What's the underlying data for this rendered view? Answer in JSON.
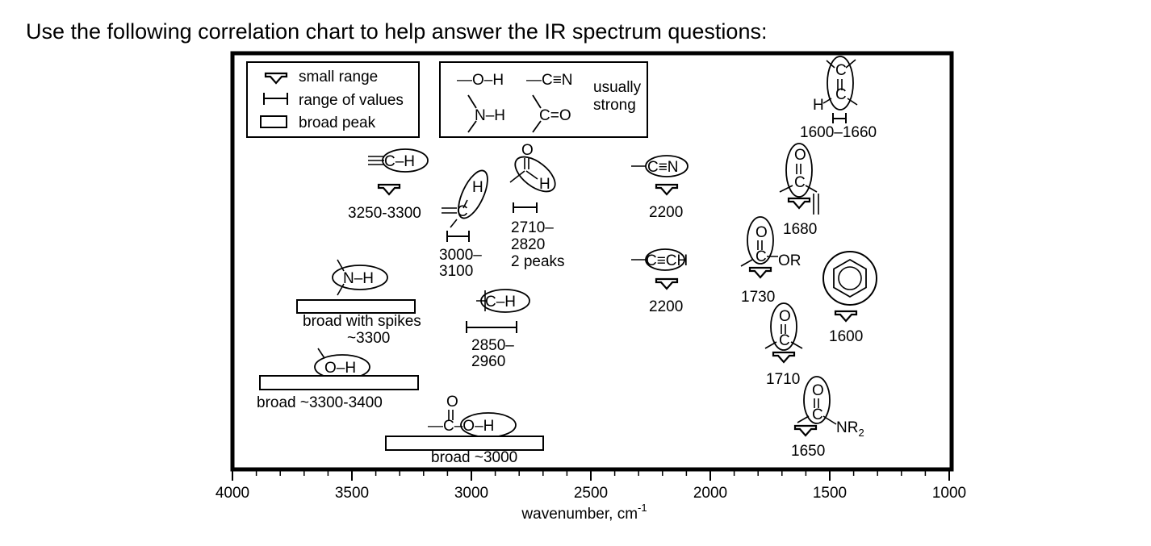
{
  "instruction": "Use the following correlation chart to help answer the IR spectrum questions:",
  "legend": {
    "items": [
      {
        "symbol": "arrow",
        "label": "small range"
      },
      {
        "symbol": "bar",
        "label": "range of values"
      },
      {
        "symbol": "box",
        "label": "broad peak"
      }
    ],
    "strong_groups": [
      "—O–H",
      "—C≡N",
      "N–H",
      "C=O"
    ],
    "strong_note_line1": "usually",
    "strong_note_line2": "strong"
  },
  "axis": {
    "xlabel": "wavenumber, cm",
    "xlabel_sup": "-1",
    "xlim": [
      4000,
      1000
    ],
    "ticks": [
      4000,
      3500,
      3000,
      2500,
      2000,
      1500,
      1000
    ]
  },
  "groups": {
    "alkyne_ch": {
      "formula": "C–H",
      "label": "3250-3300"
    },
    "alkene_ch": {
      "atom_h": "H",
      "atom_c": "C",
      "label_line1": "3000–",
      "label_line2": "3100"
    },
    "aldehyde_ch": {
      "atom_o": "O",
      "atom_h": "H",
      "label_line1": "2710–",
      "label_line2": "2820",
      "label_line3": "2 peaks"
    },
    "nitrile": {
      "formula": "C≡N",
      "label": "2200"
    },
    "alkyne_cc": {
      "formula": "C≡CH",
      "label": "2200"
    },
    "amine_nh": {
      "formula": "N–H",
      "label_line1": "broad with spikes",
      "label_line2": "~3300"
    },
    "alkyl_ch": {
      "formula": "C–H",
      "label_line1": "2850–",
      "label_line2": "2960"
    },
    "alcohol_oh": {
      "formula": "O–H",
      "label": "broad ~3300-3400"
    },
    "acid_oh": {
      "atom_o": "O",
      "formula": "—C–O–H",
      "label": "broad ~3000"
    },
    "alkene_cc": {
      "atom_h": "H",
      "atom_c1": "C",
      "atom_c2": "C",
      "label": "1600–1660"
    },
    "conj_carbonyl": {
      "atom_o": "O",
      "atom_c": "C",
      "label": "1680"
    },
    "ester": {
      "atom_o": "O",
      "atom_c": "C",
      "suffix": "OR",
      "label": "1730"
    },
    "aromatic": {
      "label": "1600"
    },
    "ketone": {
      "atom_o": "O",
      "atom_c": "C",
      "label": "1710"
    },
    "amide": {
      "atom_o": "O",
      "atom_c": "C",
      "suffix": "NR",
      "suffix_sub": "2",
      "label": "1650"
    }
  }
}
